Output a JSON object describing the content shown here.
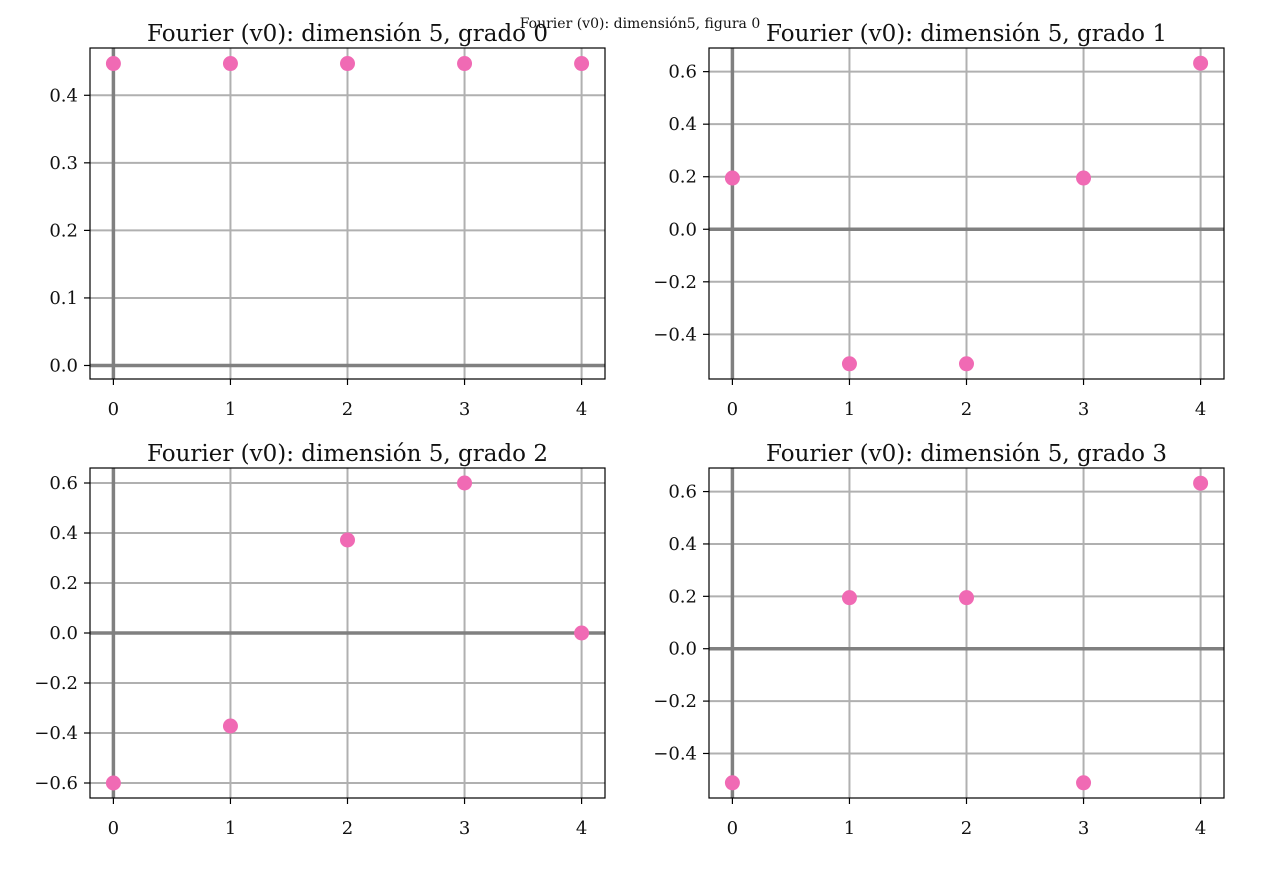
{
  "suptitle": "Fourier (v0): dimensión5, figura 0",
  "colors": {
    "point": "#f06ab4",
    "grid": "#b0b0b0",
    "zero_axis": "#808080",
    "frame": "#000000"
  },
  "chart_data": [
    {
      "type": "scatter",
      "title": "Fourier (v0): dimensión 5, grado 0",
      "x": [
        0,
        1,
        2,
        3,
        4
      ],
      "y": [
        0.447,
        0.447,
        0.447,
        0.447,
        0.447
      ],
      "xlim": [
        -0.2,
        4.2
      ],
      "ylim": [
        -0.02,
        0.47
      ],
      "xticks": [
        0,
        1,
        2,
        3,
        4
      ],
      "yticks": [
        0.0,
        0.1,
        0.2,
        0.3,
        0.4
      ],
      "ytick_labels": [
        "0.0",
        "0.1",
        "0.2",
        "0.3",
        "0.4"
      ],
      "grid": true
    },
    {
      "type": "scatter",
      "title": "Fourier (v0): dimensión 5, grado 1",
      "x": [
        0,
        1,
        2,
        3,
        4
      ],
      "y": [
        0.195,
        -0.512,
        -0.512,
        0.195,
        0.632
      ],
      "xlim": [
        -0.2,
        4.2
      ],
      "ylim": [
        -0.57,
        0.69
      ],
      "xticks": [
        0,
        1,
        2,
        3,
        4
      ],
      "yticks": [
        -0.4,
        -0.2,
        0.0,
        0.2,
        0.4,
        0.6
      ],
      "ytick_labels": [
        "−0.4",
        "−0.2",
        "0.0",
        "0.2",
        "0.4",
        "0.6"
      ],
      "grid": true
    },
    {
      "type": "scatter",
      "title": "Fourier (v0): dimensión 5, grado 2",
      "x": [
        0,
        1,
        2,
        3,
        4
      ],
      "y": [
        -0.6,
        -0.372,
        0.372,
        0.6,
        0.0
      ],
      "xlim": [
        -0.2,
        4.2
      ],
      "ylim": [
        -0.66,
        0.66
      ],
      "xticks": [
        0,
        1,
        2,
        3,
        4
      ],
      "yticks": [
        -0.6,
        -0.4,
        -0.2,
        0.0,
        0.2,
        0.4,
        0.6
      ],
      "ytick_labels": [
        "−0.6",
        "−0.4",
        "−0.2",
        "0.0",
        "0.2",
        "0.4",
        "0.6"
      ],
      "grid": true
    },
    {
      "type": "scatter",
      "title": "Fourier (v0): dimensión 5, grado 3",
      "x": [
        0,
        1,
        2,
        3,
        4
      ],
      "y": [
        -0.512,
        0.195,
        0.195,
        -0.512,
        0.632
      ],
      "xlim": [
        -0.2,
        4.2
      ],
      "ylim": [
        -0.57,
        0.69
      ],
      "xticks": [
        0,
        1,
        2,
        3,
        4
      ],
      "yticks": [
        -0.4,
        -0.2,
        0.0,
        0.2,
        0.4,
        0.6
      ],
      "ytick_labels": [
        "−0.4",
        "−0.2",
        "0.0",
        "0.2",
        "0.4",
        "0.6"
      ],
      "grid": true
    }
  ]
}
